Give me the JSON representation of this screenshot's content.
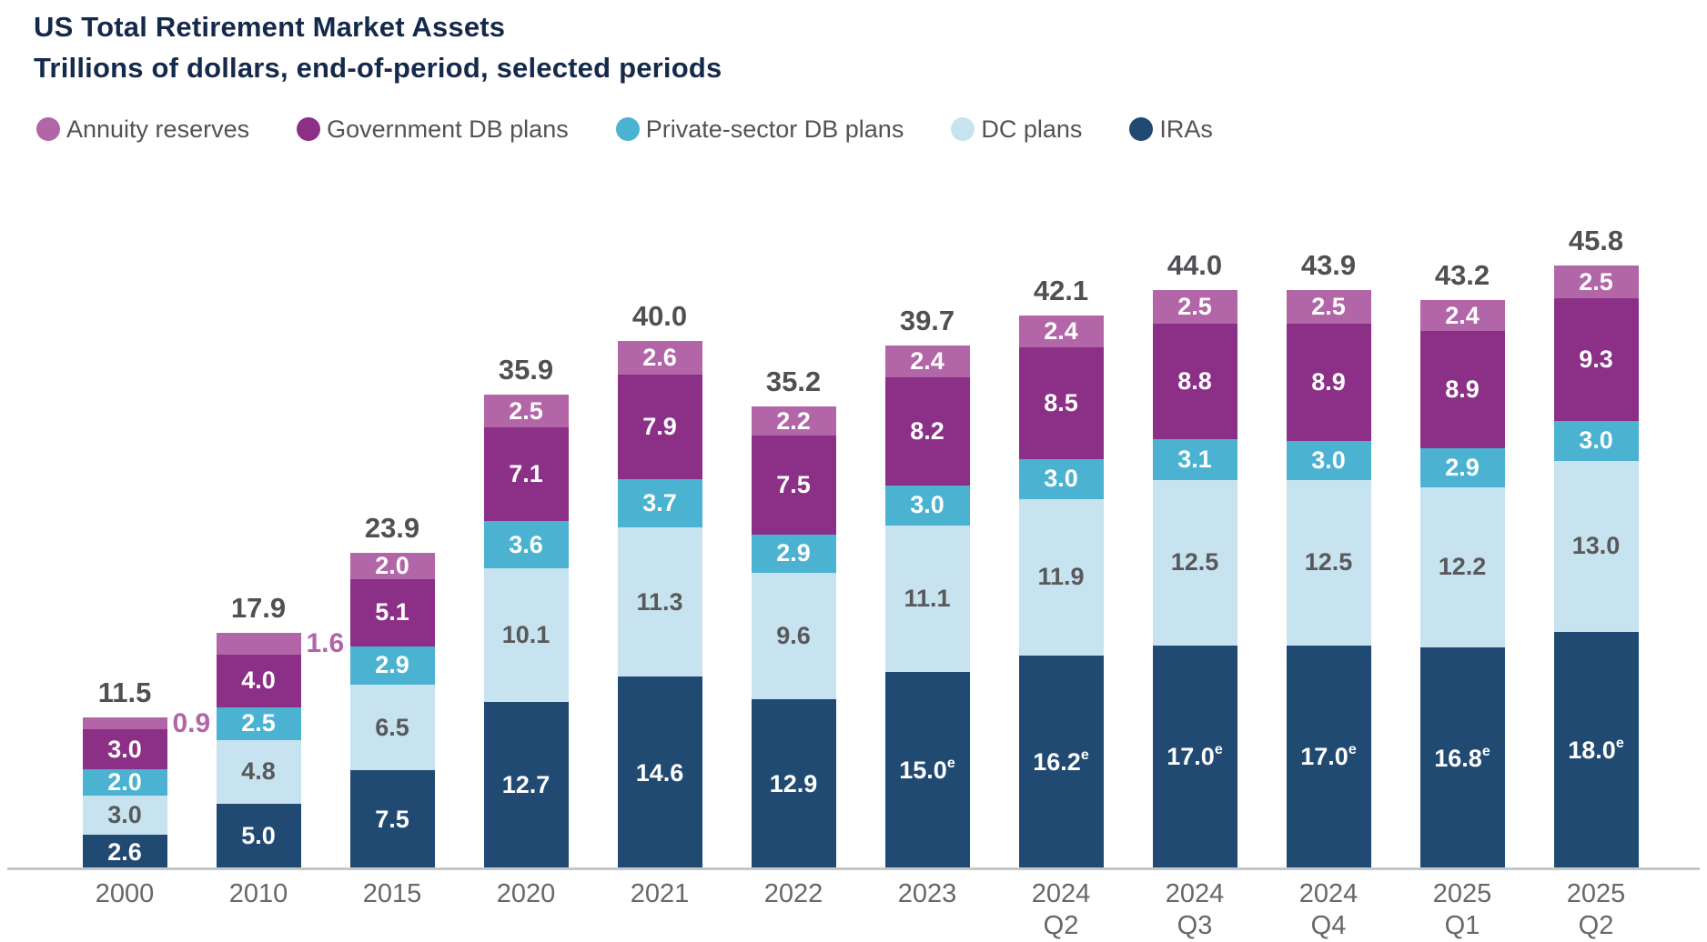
{
  "header": {
    "title": "US Total Retirement Market Assets",
    "subtitle": "Trillions of dollars, end-of-period, selected periods"
  },
  "legend": [
    {
      "label": "Annuity reserves",
      "color": "#b266a8"
    },
    {
      "label": "Government DB plans",
      "color": "#8b3086"
    },
    {
      "label": "Private-sector DB plans",
      "color": "#4bb3d1"
    },
    {
      "label": "DC plans",
      "color": "#c7e3ef"
    },
    {
      "label": "IRAs",
      "color": "#214a73"
    }
  ],
  "chart_data": {
    "type": "bar",
    "stacked": true,
    "title": "US Total Retirement Market Assets",
    "subtitle": "Trillions of dollars, end-of-period, selected periods",
    "unit": "trillions of dollars",
    "grid": false,
    "legend_position": "top",
    "ylim": [
      0,
      48
    ],
    "categories": [
      {
        "line1": "2000",
        "line2": ""
      },
      {
        "line1": "2010",
        "line2": ""
      },
      {
        "line1": "2015",
        "line2": ""
      },
      {
        "line1": "2020",
        "line2": ""
      },
      {
        "line1": "2021",
        "line2": ""
      },
      {
        "line1": "2022",
        "line2": ""
      },
      {
        "line1": "2023",
        "line2": ""
      },
      {
        "line1": "2024",
        "line2": "Q2"
      },
      {
        "line1": "2024",
        "line2": "Q3"
      },
      {
        "line1": "2024",
        "line2": "Q4"
      },
      {
        "line1": "2025",
        "line2": "Q1"
      },
      {
        "line1": "2025",
        "line2": "Q2"
      }
    ],
    "series": [
      {
        "name": "IRAs",
        "color": "#214a73",
        "text_color": "#ffffff",
        "values": [
          2.6,
          5.0,
          7.5,
          12.7,
          14.6,
          12.9,
          15.0,
          16.2,
          17.0,
          17.0,
          16.8,
          18.0
        ],
        "labels": [
          "2.6",
          "5.0",
          "7.5",
          "12.7",
          "14.6",
          "12.9",
          "15.0",
          "16.2",
          "17.0",
          "17.0",
          "16.8",
          "18.0"
        ],
        "label_sup": [
          "",
          "",
          "",
          "",
          "",
          "",
          "e",
          "e",
          "e",
          "e",
          "e",
          "e"
        ],
        "label_outside": [
          false,
          false,
          false,
          false,
          false,
          false,
          false,
          false,
          false,
          false,
          false,
          false
        ]
      },
      {
        "name": "DC plans",
        "color": "#c7e3ef",
        "text_color": "#58595b",
        "values": [
          3.0,
          4.8,
          6.5,
          10.1,
          11.3,
          9.6,
          11.1,
          11.9,
          12.5,
          12.5,
          12.2,
          13.0
        ],
        "labels": [
          "3.0",
          "4.8",
          "6.5",
          "10.1",
          "11.3",
          "9.6",
          "11.1",
          "11.9",
          "12.5",
          "12.5",
          "12.2",
          "13.0"
        ],
        "label_sup": [
          "",
          "",
          "",
          "",
          "",
          "",
          "",
          "",
          "",
          "",
          "",
          ""
        ],
        "label_outside": [
          false,
          false,
          false,
          false,
          false,
          false,
          false,
          false,
          false,
          false,
          false,
          false
        ]
      },
      {
        "name": "Private-sector DB plans",
        "color": "#4bb3d1",
        "text_color": "#ffffff",
        "values": [
          2.0,
          2.5,
          2.9,
          3.6,
          3.7,
          2.9,
          3.0,
          3.0,
          3.1,
          3.0,
          2.9,
          3.0
        ],
        "labels": [
          "2.0",
          "2.5",
          "2.9",
          "3.6",
          "3.7",
          "2.9",
          "3.0",
          "3.0",
          "3.1",
          "3.0",
          "2.9",
          "3.0"
        ],
        "label_sup": [
          "",
          "",
          "",
          "",
          "",
          "",
          "",
          "",
          "",
          "",
          "",
          ""
        ],
        "label_outside": [
          false,
          false,
          false,
          false,
          false,
          false,
          false,
          false,
          false,
          false,
          false,
          false
        ]
      },
      {
        "name": "Government DB plans",
        "color": "#8b3086",
        "text_color": "#ffffff",
        "values": [
          3.0,
          4.0,
          5.1,
          7.1,
          7.9,
          7.5,
          8.2,
          8.5,
          8.8,
          8.9,
          8.9,
          9.3
        ],
        "labels": [
          "3.0",
          "4.0",
          "5.1",
          "7.1",
          "7.9",
          "7.5",
          "8.2",
          "8.5",
          "8.8",
          "8.9",
          "8.9",
          "9.3"
        ],
        "label_sup": [
          "",
          "",
          "",
          "",
          "",
          "",
          "",
          "",
          "",
          "",
          "",
          ""
        ],
        "label_outside": [
          false,
          false,
          false,
          false,
          false,
          false,
          false,
          false,
          false,
          false,
          false,
          false
        ]
      },
      {
        "name": "Annuity reserves",
        "color": "#b266a8",
        "text_color": "#ffffff",
        "values": [
          0.9,
          1.6,
          2.0,
          2.5,
          2.6,
          2.2,
          2.4,
          2.4,
          2.5,
          2.5,
          2.4,
          2.5
        ],
        "labels": [
          "0.9",
          "1.6",
          "2.0",
          "2.5",
          "2.6",
          "2.2",
          "2.4",
          "2.4",
          "2.5",
          "2.5",
          "2.4",
          "2.5"
        ],
        "label_sup": [
          "",
          "",
          "",
          "",
          "",
          "",
          "",
          "",
          "",
          "",
          "",
          ""
        ],
        "label_outside": [
          true,
          true,
          false,
          false,
          false,
          false,
          false,
          false,
          false,
          false,
          false,
          false
        ]
      }
    ],
    "totals": [
      "11.5",
      "17.9",
      "23.9",
      "35.9",
      "40.0",
      "35.2",
      "39.7",
      "42.1",
      "44.0",
      "43.9",
      "43.2",
      "45.8"
    ]
  }
}
